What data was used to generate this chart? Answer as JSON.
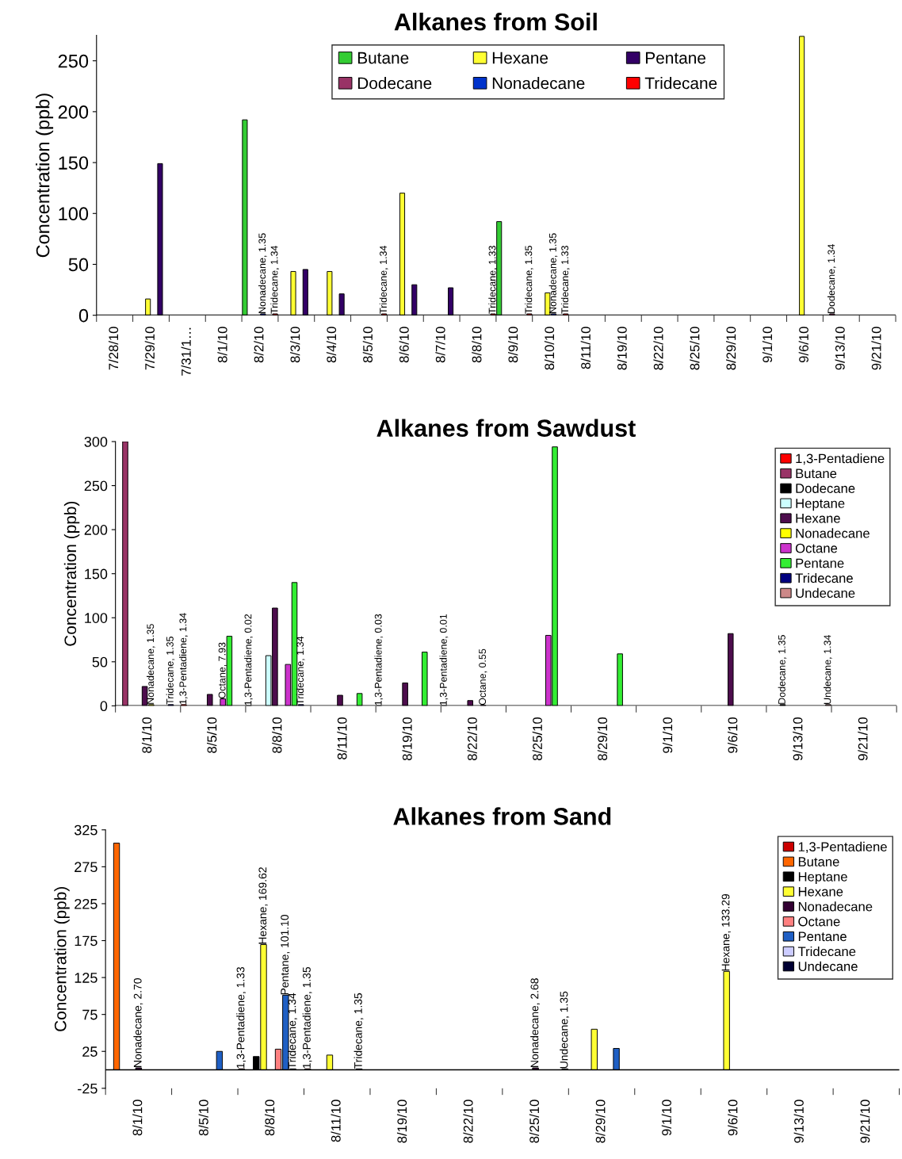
{
  "chart_data": [
    {
      "type": "bar",
      "title": "Alkanes from Soil",
      "ylabel": "Concentration (ppb)",
      "categories": [
        "7/28/10",
        "7/29/10",
        "7/31/1…",
        "8/1/10",
        "8/2/10",
        "8/3/10",
        "8/4/10",
        "8/5/10",
        "8/6/10",
        "8/7/10",
        "8/8/10",
        "8/9/10",
        "8/10/10",
        "8/11/10",
        "8/19/10",
        "8/22/10",
        "8/25/10",
        "8/29/10",
        "9/1/10",
        "9/6/10",
        "9/13/10",
        "9/21/10"
      ],
      "series": [
        {
          "name": "Butane",
          "color": "#33cc33",
          "values": [
            null,
            null,
            null,
            null,
            192,
            null,
            null,
            null,
            null,
            null,
            null,
            92,
            null,
            null,
            null,
            null,
            null,
            null,
            null,
            null,
            null,
            null
          ]
        },
        {
          "name": "Dodecane",
          "color": "#993366",
          "values": [
            null,
            null,
            null,
            null,
            null,
            null,
            null,
            null,
            null,
            null,
            null,
            null,
            null,
            null,
            null,
            null,
            null,
            null,
            null,
            null,
            1.34,
            null
          ],
          "value_labels": [
            null,
            null,
            null,
            null,
            null,
            null,
            null,
            null,
            null,
            null,
            null,
            null,
            null,
            null,
            null,
            null,
            null,
            null,
            null,
            null,
            "Dodecane, 1.34",
            null
          ]
        },
        {
          "name": "Hexane",
          "color": "#ffff33",
          "values": [
            null,
            16,
            null,
            null,
            null,
            43,
            43,
            null,
            120,
            null,
            null,
            null,
            22,
            null,
            null,
            null,
            null,
            null,
            null,
            274,
            null,
            null
          ]
        },
        {
          "name": "Nonadecane",
          "color": "#0033cc",
          "values": [
            null,
            null,
            null,
            null,
            1.35,
            null,
            null,
            null,
            null,
            null,
            null,
            null,
            1.35,
            null,
            null,
            null,
            null,
            null,
            null,
            null,
            null,
            null
          ],
          "value_labels": [
            null,
            null,
            null,
            null,
            "Nonadecane, 1.35",
            null,
            null,
            null,
            null,
            null,
            null,
            null,
            "Nonadecane, 1.35",
            null,
            null,
            null,
            null,
            null,
            null,
            null,
            null,
            null
          ]
        },
        {
          "name": "Pentane",
          "color": "#330066",
          "values": [
            null,
            149,
            null,
            null,
            null,
            45,
            21,
            null,
            30,
            27,
            null,
            null,
            null,
            null,
            null,
            null,
            null,
            null,
            null,
            null,
            null,
            null
          ]
        },
        {
          "name": "Tridecane",
          "color": "#ff0000",
          "values": [
            null,
            null,
            null,
            null,
            1.34,
            null,
            null,
            1.34,
            null,
            null,
            1.33,
            1.35,
            1.33,
            null,
            null,
            null,
            null,
            null,
            null,
            null,
            null,
            null
          ],
          "value_labels": [
            null,
            null,
            null,
            null,
            "Tridecane, 1.34",
            null,
            null,
            "Tridecane, 1.34",
            null,
            null,
            "Tridecane, 1.33",
            "Tridecane, 1.35",
            "Tridecane, 1.33",
            null,
            null,
            null,
            null,
            null,
            null,
            null,
            null,
            null
          ]
        }
      ],
      "ylim": [
        0,
        275
      ],
      "yticks": [
        0,
        50,
        100,
        150,
        200,
        250
      ],
      "legend": "top",
      "grid": false
    },
    {
      "type": "bar",
      "title": "Alkanes from Sawdust",
      "ylabel": "Concentration (ppb)",
      "categories": [
        "8/1/10",
        "8/5/10",
        "8/8/10",
        "8/11/10",
        "8/19/10",
        "8/22/10",
        "8/25/10",
        "8/29/10",
        "9/1/10",
        "9/6/10",
        "9/13/10",
        "9/21/10"
      ],
      "series": [
        {
          "name": "1,3-Pentadiene",
          "color": "#ff0000",
          "values": [
            null,
            1.34,
            0.02,
            null,
            0.03,
            0.01,
            null,
            null,
            null,
            null,
            null,
            null
          ],
          "value_labels": [
            null,
            "1,3-Pentadiene, 1.34",
            "1,3-Pentadiene, 0.02",
            null,
            "1,3-Pentadiene, 0.03",
            "1,3-Pentadiene, 0.01",
            null,
            null,
            null,
            null,
            null,
            null
          ]
        },
        {
          "name": "Butane",
          "color": "#993366",
          "values": [
            300,
            null,
            null,
            null,
            null,
            null,
            null,
            null,
            null,
            null,
            null,
            null
          ]
        },
        {
          "name": "Dodecane",
          "color": "#000000",
          "values": [
            null,
            null,
            null,
            null,
            null,
            null,
            null,
            null,
            null,
            null,
            1.35,
            null
          ],
          "value_labels": [
            null,
            null,
            null,
            null,
            null,
            null,
            null,
            null,
            null,
            null,
            "Dodecane, 1.35",
            null
          ]
        },
        {
          "name": "Heptane",
          "color": "#ccffff",
          "values": [
            null,
            null,
            57,
            null,
            null,
            null,
            null,
            null,
            null,
            null,
            null,
            null
          ]
        },
        {
          "name": "Hexane",
          "color": "#4d0d4d",
          "values": [
            22,
            13,
            111,
            12,
            26,
            6,
            null,
            null,
            null,
            82,
            null,
            null
          ]
        },
        {
          "name": "Nonadecane",
          "color": "#ffff00",
          "values": [
            1.35,
            null,
            null,
            null,
            null,
            null,
            null,
            null,
            null,
            null,
            null,
            null
          ],
          "value_labels": [
            "Nonadecane, 1.35",
            null,
            null,
            null,
            null,
            null,
            null,
            null,
            null,
            null,
            null,
            null
          ]
        },
        {
          "name": "Octane",
          "color": "#cc33cc",
          "values": [
            null,
            7.93,
            47,
            null,
            null,
            0.55,
            80,
            null,
            null,
            null,
            null,
            null
          ],
          "value_labels": [
            null,
            "Octane, 7.93",
            null,
            null,
            null,
            "Octane, 0.55",
            null,
            null,
            null,
            null,
            null,
            null
          ]
        },
        {
          "name": "Pentane",
          "color": "#33ee33",
          "values": [
            null,
            79,
            140,
            14,
            61,
            null,
            294,
            59,
            null,
            null,
            null,
            null
          ]
        },
        {
          "name": "Tridecane",
          "color": "#000080",
          "values": [
            1.35,
            null,
            1.34,
            null,
            null,
            null,
            null,
            null,
            null,
            null,
            null,
            null
          ],
          "value_labels": [
            "Tridecane, 1.35",
            null,
            "Tridecane, 1.34",
            null,
            null,
            null,
            null,
            null,
            null,
            null,
            null,
            null
          ]
        },
        {
          "name": "Undecane",
          "color": "#cc8888",
          "values": [
            null,
            null,
            null,
            null,
            null,
            null,
            null,
            null,
            null,
            null,
            1.34,
            null
          ],
          "value_labels": [
            null,
            null,
            null,
            null,
            null,
            null,
            null,
            null,
            null,
            null,
            "Undecane, 1.34",
            null
          ]
        }
      ],
      "ylim": [
        0,
        300
      ],
      "yticks": [
        0,
        50,
        100,
        150,
        200,
        250,
        300
      ],
      "legend": "top right",
      "grid": false
    },
    {
      "type": "bar",
      "title": "Alkanes from Sand",
      "ylabel": "Concentration (ppb)",
      "categories": [
        "8/1/10",
        "8/5/10",
        "8/8/10",
        "8/11/10",
        "8/19/10",
        "8/22/10",
        "8/25/10",
        "8/29/10",
        "9/1/10",
        "9/6/10",
        "9/13/10",
        "9/21/10"
      ],
      "series": [
        {
          "name": "1,3-Pentadiene",
          "color": "#cc0000",
          "values": [
            null,
            null,
            1.33,
            1.35,
            null,
            null,
            null,
            null,
            null,
            null,
            null,
            null
          ],
          "value_labels": [
            null,
            null,
            "1,3-Pentadiene, 1.33",
            "1,3-Pentadiene, 1.35",
            null,
            null,
            null,
            null,
            null,
            null,
            null,
            null
          ]
        },
        {
          "name": "Butane",
          "color": "#ff6600",
          "values": [
            307,
            null,
            null,
            null,
            null,
            null,
            null,
            null,
            null,
            null,
            null,
            null
          ]
        },
        {
          "name": "Heptane",
          "color": "#000000",
          "values": [
            null,
            null,
            18,
            null,
            null,
            null,
            null,
            null,
            null,
            null,
            null,
            null
          ]
        },
        {
          "name": "Hexane",
          "color": "#ffff33",
          "values": [
            null,
            null,
            169.62,
            20,
            null,
            null,
            null,
            55,
            null,
            133.29,
            null,
            null
          ],
          "value_labels": [
            null,
            null,
            "Hexane, 169.62",
            null,
            null,
            null,
            null,
            null,
            null,
            "Hexane, 133.29",
            null,
            null
          ]
        },
        {
          "name": "Nonadecane",
          "color": "#330033",
          "values": [
            2.7,
            null,
            null,
            null,
            null,
            null,
            2.68,
            null,
            null,
            null,
            null,
            null
          ],
          "value_labels": [
            "Nonadecane, 2.70",
            null,
            null,
            null,
            null,
            null,
            "Nonadecane, 2.68",
            null,
            null,
            null,
            null,
            null
          ]
        },
        {
          "name": "Octane",
          "color": "#ff8080",
          "values": [
            null,
            null,
            28,
            null,
            null,
            null,
            null,
            null,
            null,
            null,
            null,
            null
          ]
        },
        {
          "name": "Pentane",
          "color": "#1f5fc4",
          "values": [
            null,
            25,
            101.1,
            null,
            null,
            null,
            null,
            29,
            null,
            null,
            null,
            null
          ],
          "value_labels": [
            null,
            null,
            "Pentane, 101.10",
            null,
            null,
            null,
            null,
            null,
            null,
            null,
            null,
            null
          ]
        },
        {
          "name": "Tridecane",
          "color": "#ccccff",
          "values": [
            null,
            null,
            1.34,
            1.35,
            null,
            null,
            null,
            null,
            null,
            null,
            null,
            null
          ],
          "value_labels": [
            null,
            null,
            "Tridecane, 1.34",
            "Tridecane, 1.35",
            null,
            null,
            null,
            null,
            null,
            null,
            null,
            null
          ]
        },
        {
          "name": "Undecane",
          "color": "#000033",
          "values": [
            null,
            null,
            null,
            null,
            null,
            null,
            1.35,
            null,
            null,
            null,
            null,
            null
          ],
          "value_labels": [
            null,
            null,
            null,
            null,
            null,
            null,
            "Undecane, 1.35",
            null,
            null,
            null,
            null,
            null
          ]
        }
      ],
      "ylim": [
        -25,
        325
      ],
      "yticks": [
        -25,
        25,
        75,
        125,
        175,
        225,
        275,
        325
      ],
      "legend": "top right",
      "grid": false
    }
  ]
}
